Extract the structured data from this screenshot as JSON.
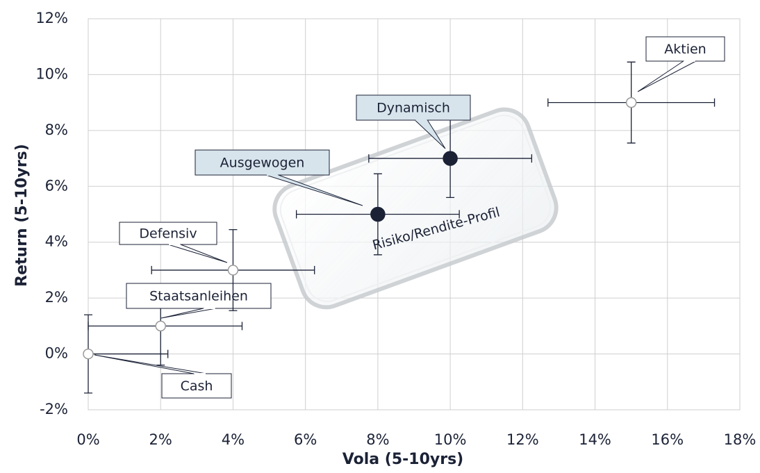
{
  "chart_data": {
    "type": "scatter",
    "x_label": "Vola (5-10yrs)",
    "y_label": "Return (5-10yrs)",
    "annotation": "Risiko/Rendite-Profil",
    "xlim": [
      0,
      18
    ],
    "xticks": [
      {
        "value": 0,
        "label": "0%"
      },
      {
        "value": 2,
        "label": "2%"
      },
      {
        "value": 4,
        "label": "4%"
      },
      {
        "value": 6,
        "label": "6%"
      },
      {
        "value": 8,
        "label": "8%"
      },
      {
        "value": 10,
        "label": "10%"
      },
      {
        "value": 12,
        "label": "12%"
      },
      {
        "value": 14,
        "label": "14%"
      },
      {
        "value": 16,
        "label": "16%"
      },
      {
        "value": 18,
        "label": "18%"
      }
    ],
    "ylim": [
      -2,
      12
    ],
    "yticks": [
      {
        "value": -2,
        "label": "-2%"
      },
      {
        "value": 0,
        "label": "0%"
      },
      {
        "value": 2,
        "label": "2%"
      },
      {
        "value": 4,
        "label": "4%"
      },
      {
        "value": 6,
        "label": "6%"
      },
      {
        "value": 8,
        "label": "8%"
      },
      {
        "value": 10,
        "label": "10%"
      },
      {
        "value": 12,
        "label": "12%"
      }
    ],
    "grid": true,
    "points": [
      {
        "label": "Cash",
        "x": 0,
        "y": 0,
        "xerr": 2.2,
        "yerr": 1.4,
        "filled": false
      },
      {
        "label": "Staatsanleihen",
        "x": 2,
        "y": 1,
        "xerr": 2.25,
        "yerr": 1.4,
        "filled": false
      },
      {
        "label": "Defensiv",
        "x": 4,
        "y": 3,
        "xerr": 2.25,
        "yerr": 1.45,
        "filled": false
      },
      {
        "label": "Ausgewogen",
        "x": 8,
        "y": 5,
        "xerr": 2.25,
        "yerr": 1.45,
        "filled": true
      },
      {
        "label": "Dynamisch",
        "x": 10,
        "y": 7,
        "xerr": 2.25,
        "yerr": 1.4,
        "filled": true
      },
      {
        "label": "Aktien",
        "x": 15,
        "y": 9,
        "xerr": 2.3,
        "yerr": 1.45,
        "filled": false
      }
    ],
    "marker_color": "#1b2236",
    "hollow_color": "#999999",
    "errorbar_color": "#1b2236"
  }
}
